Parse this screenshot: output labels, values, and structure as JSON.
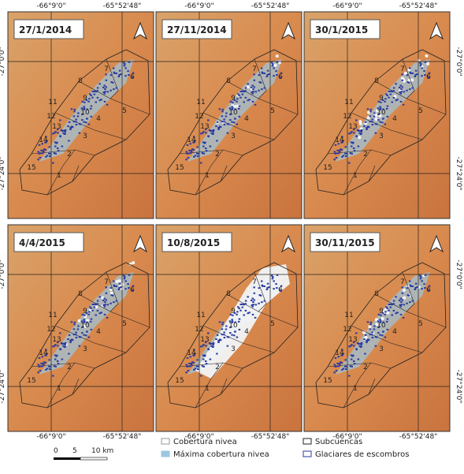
{
  "panels": [
    {
      "date": "27/1/2014"
    },
    {
      "date": "27/11/2014"
    },
    {
      "date": "30/1/2015"
    },
    {
      "date": "4/4/2015"
    },
    {
      "date": "10/8/2015"
    },
    {
      "date": "30/11/2015"
    }
  ],
  "coords": {
    "lon": [
      "-66°9'0\"",
      "-65°52'48\""
    ],
    "lat": [
      "-27°0'0\"",
      "-27°24'0\""
    ]
  },
  "subbasins": [
    "1",
    "2",
    "3",
    "4",
    "5",
    "6",
    "7",
    "8",
    "9",
    "10",
    "11",
    "12",
    "13",
    "14",
    "15"
  ],
  "scale": [
    "0",
    "5",
    "10 km"
  ],
  "legend": [
    "Cobertura nivea",
    "Máxima cobertura nivea",
    "Subcuencas",
    "Glaciares de escombros"
  ]
}
